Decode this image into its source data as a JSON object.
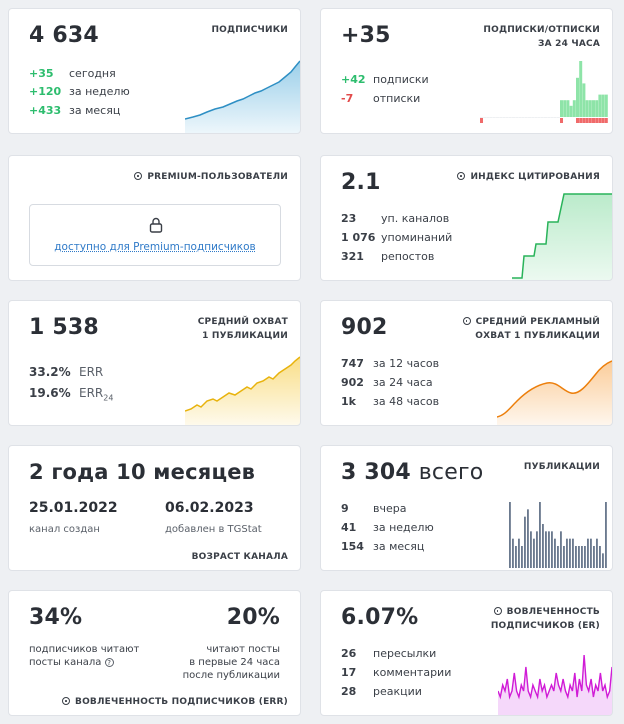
{
  "subscribers": {
    "value": "4 634",
    "title": "ПОДПИСЧИКИ",
    "rows": [
      {
        "value": "+35",
        "label": "сегодня"
      },
      {
        "value": "+120",
        "label": "за неделю"
      },
      {
        "value": "+433",
        "label": "за месяц"
      }
    ],
    "color": "#4aa8d8"
  },
  "subs_unsubs": {
    "value": "+35",
    "title_line1": "ПОДПИСКИ/ОТПИСКИ",
    "title_line2": "ЗА 24 ЧАСА",
    "rows": [
      {
        "value": "+42",
        "label": "подписки"
      },
      {
        "value": "-7",
        "label": "отписки"
      }
    ],
    "bars_pos": [
      0,
      0,
      0,
      0,
      0,
      0,
      0,
      0,
      0,
      0,
      0,
      0,
      0,
      0,
      0,
      0,
      0,
      0,
      0,
      0,
      0,
      0,
      0,
      0,
      0,
      3,
      3,
      3,
      2,
      3,
      7,
      10,
      6,
      3,
      3,
      3,
      3,
      4,
      4,
      4
    ],
    "bars_neg": [
      1,
      0,
      0,
      0,
      0,
      0,
      0,
      0,
      0,
      0,
      0,
      0,
      0,
      0,
      0,
      0,
      0,
      0,
      0,
      0,
      0,
      0,
      0,
      0,
      0,
      1,
      0,
      0,
      0,
      0,
      1,
      1,
      1,
      1,
      1,
      1,
      1,
      1,
      1,
      1
    ]
  },
  "premium": {
    "title": "PREMIUM-ПОЛЬЗОВАТЕЛИ",
    "link": "доступно для Premium-подписчиков"
  },
  "citation": {
    "value": "2.1",
    "title": "ИНДЕКС ЦИТИРОВАНИЯ",
    "rows": [
      {
        "value": "23",
        "label": "уп. каналов"
      },
      {
        "value": "1 076",
        "label": "упоминаний"
      },
      {
        "value": "321",
        "label": "репостов"
      }
    ],
    "color": "#3cc56a"
  },
  "reach": {
    "value": "1 538",
    "title_line1": "СРЕДНИЙ ОХВАТ",
    "title_line2": "1 ПУБЛИКАЦИИ",
    "err_value": "33.2%",
    "err_label": "ERR",
    "err24_value": "19.6%",
    "err24_label": "ERR",
    "err24_sub": "24",
    "color": "#f0c11f"
  },
  "ad_reach": {
    "value": "902",
    "title_line1": "СРЕДНИЙ РЕКЛАМНЫЙ",
    "title_line2": "ОХВАТ 1 ПУБЛИКАЦИИ",
    "rows": [
      {
        "value": "747",
        "label": "за 12 часов"
      },
      {
        "value": "902",
        "label": "за 24 часа"
      },
      {
        "value": "1k",
        "label": "за 48 часов"
      }
    ],
    "color": "#f08a1c"
  },
  "age": {
    "value": "2 года 10 месяцев",
    "created_date": "25.01.2022",
    "created_label": "канал создан",
    "added_date": "06.02.2023",
    "added_label": "добавлен в TGStat",
    "footer": "ВОЗРАСТ КАНАЛА"
  },
  "publications": {
    "value": "3 304",
    "value_suffix": "всего",
    "title": "ПУБЛИКАЦИИ",
    "rows": [
      {
        "value": "9",
        "label": "вчера"
      },
      {
        "value": "41",
        "label": "за неделю"
      },
      {
        "value": "154",
        "label": "за месяц"
      }
    ],
    "bars": [
      0,
      0,
      0,
      0,
      0,
      9,
      4,
      3,
      4,
      3,
      7,
      8,
      5,
      4,
      5,
      9,
      6,
      5,
      5,
      5,
      4,
      3,
      5,
      3,
      4,
      4,
      4,
      3,
      3,
      3,
      3,
      4,
      4,
      3,
      4,
      3,
      2,
      9
    ],
    "color": "#6b7a8f"
  },
  "engagement_err": {
    "value_left": "34%",
    "label_left_line1": "подписчиков читают",
    "label_left_line2": "посты канала",
    "value_right": "20%",
    "label_right_line1": "читают посты",
    "label_right_line2": "в первые 24 часа",
    "label_right_line3": "после публикации",
    "footer": "ВОВЛЕЧЕННОСТЬ ПОДПИСЧИКОВ (ERR)"
  },
  "engagement_er": {
    "value": "6.07%",
    "title_line1": "ВОВЛЕЧЕННОСТЬ",
    "title_line2": "ПОДПИСЧИКОВ (ER)",
    "rows": [
      {
        "value": "26",
        "label": "пересылки"
      },
      {
        "value": "17",
        "label": "комментарии"
      },
      {
        "value": "28",
        "label": "реакции"
      }
    ],
    "series": [
      3,
      2,
      4,
      3,
      5,
      2,
      3,
      6,
      3,
      2,
      4,
      3,
      7,
      3,
      2,
      4,
      3,
      2,
      5,
      3,
      4,
      2,
      3,
      4,
      3,
      6,
      4,
      3,
      5,
      3,
      2,
      4,
      3,
      6,
      2,
      5,
      3,
      9,
      4,
      3,
      5,
      2,
      4,
      3,
      6,
      3,
      4,
      2,
      3,
      7
    ],
    "color": "#d01bd6"
  }
}
